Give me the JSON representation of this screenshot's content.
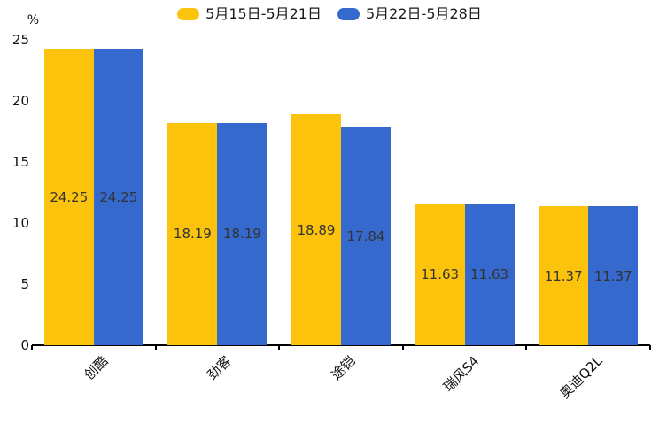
{
  "chart_data": {
    "type": "bar",
    "title": "",
    "categories": [
      "创酷",
      "劲客",
      "途铠",
      "瑞风S4",
      "奥迪Q2L"
    ],
    "series": [
      {
        "name": "5月15日-5月21日",
        "color": "#fcc30d",
        "values": [
          24.25,
          18.19,
          18.89,
          11.63,
          11.37
        ]
      },
      {
        "name": "5月22日-5月28日",
        "color": "#3569cd",
        "values": [
          24.25,
          18.19,
          17.84,
          11.63,
          11.37
        ]
      }
    ],
    "ylabel": "%",
    "ylim": [
      0,
      25
    ],
    "yticks": [
      0,
      5,
      10,
      15,
      20,
      25
    ],
    "grid": false,
    "legend_position": "top-center",
    "bar_labels_inside": true,
    "bar_label_color": "#333333",
    "axis_color": "#000000",
    "background_color": "#ffffff"
  }
}
